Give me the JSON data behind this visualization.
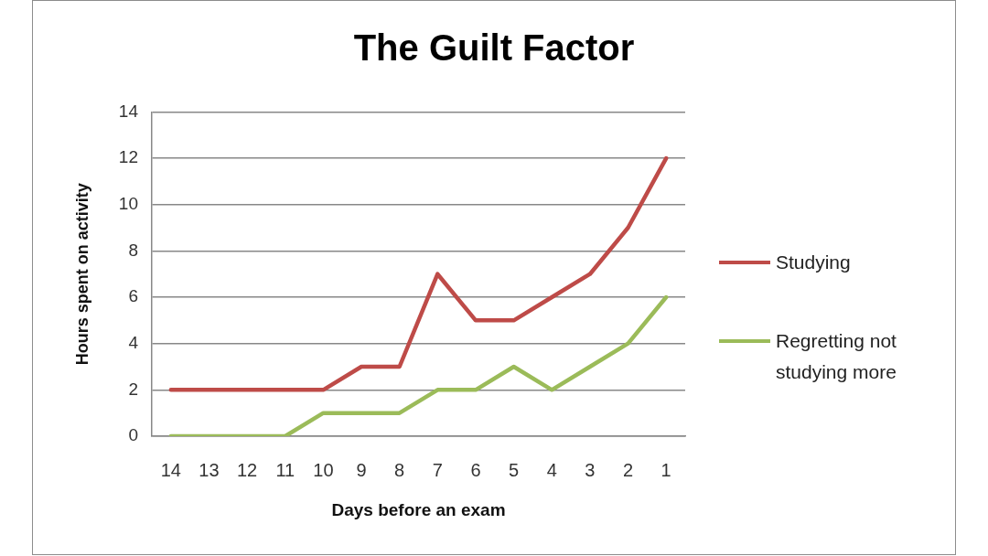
{
  "chart_data": {
    "type": "line",
    "title": "The Guilt Factor",
    "xlabel": "Days before an exam",
    "ylabel": "Hours spent on activity",
    "categories": [
      "14",
      "13",
      "12",
      "11",
      "10",
      "9",
      "8",
      "7",
      "6",
      "5",
      "4",
      "3",
      "2",
      "1"
    ],
    "series": [
      {
        "name": "Studying",
        "color": "#be4b48",
        "values": [
          2,
          2,
          2,
          2,
          2,
          3,
          3,
          7,
          5,
          5,
          6,
          7,
          9,
          12
        ]
      },
      {
        "name": "Regretting not studying more",
        "color": "#9bbb59",
        "values": [
          0,
          0,
          0,
          0,
          1,
          1,
          1,
          2,
          2,
          3,
          2,
          3,
          4,
          6
        ]
      }
    ],
    "ylim": [
      0,
      14
    ],
    "yticks": [
      0,
      2,
      4,
      6,
      8,
      10,
      12,
      14
    ],
    "grid": "y",
    "legend": "right",
    "marker": "none",
    "line_style": "solid"
  }
}
